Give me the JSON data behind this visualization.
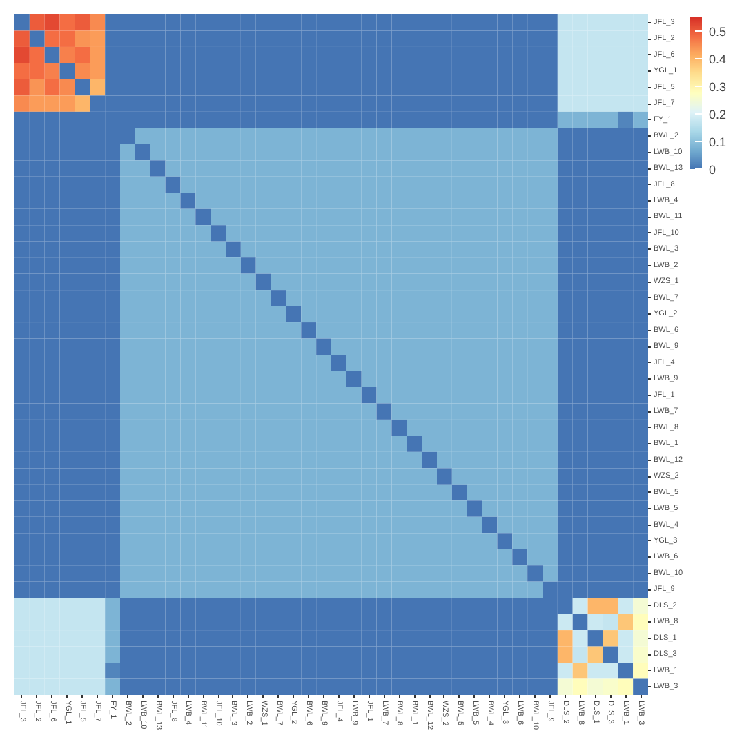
{
  "chart_data": {
    "type": "heatmap",
    "categories": [
      "JFL_3",
      "JFL_2",
      "JFL_6",
      "YGL_1",
      "JFL_5",
      "JFL_7",
      "FY_1",
      "BWL_2",
      "LWB_10",
      "BWL_13",
      "JFL_8",
      "LWB_4",
      "BWL_11",
      "JFL_10",
      "BWL_3",
      "LWB_2",
      "WZS_1",
      "BWL_7",
      "YGL_2",
      "BWL_6",
      "BWL_9",
      "JFL_4",
      "LWB_9",
      "JFL_1",
      "LWB_7",
      "BWL_8",
      "BWL_1",
      "BWL_12",
      "WZS_2",
      "BWL_5",
      "LWB_5",
      "BWL_4",
      "YGL_3",
      "LWB_6",
      "BWL_10",
      "JFL_9",
      "DLS_2",
      "LWB_8",
      "DLS_1",
      "DLS_3",
      "LWB_1",
      "LWB_3"
    ],
    "y_categories": [
      "JFL_3",
      "JFL_2",
      "JFL_6",
      "YGL_1",
      "JFL_5",
      "JFL_7",
      "FY_1",
      "BWL_2",
      "LWB_10",
      "BWL_13",
      "JFL_8",
      "LWB_4",
      "BWL_11",
      "JFL_10",
      "BWL_3",
      "LWB_2",
      "WZS_1",
      "BWL_7",
      "YGL_2",
      "BWL_6",
      "BWL_9",
      "JFL_4",
      "LWB_9",
      "JFL_1",
      "LWB_7",
      "BWL_8",
      "BWL_1",
      "BWL_12",
      "WZS_2",
      "BWL_5",
      "LWB_5",
      "BWL_4",
      "YGL_3",
      "LWB_6",
      "BWL_10",
      "JFL_9",
      "DLS_2",
      "LWB_8",
      "DLS_1",
      "DLS_3",
      "LWB_1",
      "LWB_3"
    ],
    "cells": [
      [
        0,
        0.5,
        0.52,
        0.48,
        0.5,
        0.45,
        0,
        0,
        0,
        0,
        0,
        0,
        0,
        0,
        0,
        0,
        0,
        0,
        0,
        0,
        0,
        0,
        0,
        0,
        0,
        0,
        0,
        0,
        0,
        0,
        0,
        0,
        0,
        0,
        0,
        0,
        0.17,
        0.17,
        0.17,
        0.17,
        0.17,
        0.17
      ],
      [
        0.5,
        0,
        0.48,
        0.48,
        0.44,
        0.43,
        0,
        0,
        0,
        0,
        0,
        0,
        0,
        0,
        0,
        0,
        0,
        0,
        0,
        0,
        0,
        0,
        0,
        0,
        0,
        0,
        0,
        0,
        0,
        0,
        0,
        0,
        0,
        0,
        0,
        0,
        0.17,
        0.17,
        0.17,
        0.17,
        0.17,
        0.17
      ],
      [
        0.52,
        0.48,
        0,
        0.46,
        0.48,
        0.43,
        0,
        0,
        0,
        0,
        0,
        0,
        0,
        0,
        0,
        0,
        0,
        0,
        0,
        0,
        0,
        0,
        0,
        0,
        0,
        0,
        0,
        0,
        0,
        0,
        0,
        0,
        0,
        0,
        0,
        0,
        0.17,
        0.17,
        0.17,
        0.17,
        0.17,
        0.17
      ],
      [
        0.48,
        0.48,
        0.46,
        0,
        0.45,
        0.43,
        0,
        0,
        0,
        0,
        0,
        0,
        0,
        0,
        0,
        0,
        0,
        0,
        0,
        0,
        0,
        0,
        0,
        0,
        0,
        0,
        0,
        0,
        0,
        0,
        0,
        0,
        0,
        0,
        0,
        0,
        0.17,
        0.17,
        0.17,
        0.17,
        0.17,
        0.17
      ],
      [
        0.5,
        0.44,
        0.48,
        0.45,
        0,
        0.4,
        0,
        0,
        0,
        0,
        0,
        0,
        0,
        0,
        0,
        0,
        0,
        0,
        0,
        0,
        0,
        0,
        0,
        0,
        0,
        0,
        0,
        0,
        0,
        0,
        0,
        0,
        0,
        0,
        0,
        0,
        0.17,
        0.17,
        0.17,
        0.17,
        0.17,
        0.17
      ],
      [
        0.45,
        0.43,
        0.43,
        0.43,
        0.4,
        0,
        0,
        0,
        0,
        0,
        0,
        0,
        0,
        0,
        0,
        0,
        0,
        0,
        0,
        0,
        0,
        0,
        0,
        0,
        0,
        0,
        0,
        0,
        0,
        0,
        0,
        0,
        0,
        0,
        0,
        0,
        0.17,
        0.17,
        0.17,
        0.17,
        0.17,
        0.17
      ],
      [
        0,
        0,
        0,
        0,
        0,
        0,
        0,
        0,
        0,
        0,
        0,
        0,
        0,
        0,
        0,
        0,
        0,
        0,
        0,
        0,
        0,
        0,
        0,
        0,
        0,
        0,
        0,
        0,
        0,
        0,
        0,
        0,
        0,
        0,
        0,
        0,
        0.08,
        0.08,
        0.08,
        0.08,
        0.02,
        0.08
      ],
      [
        0,
        0,
        0,
        0,
        0,
        0,
        0,
        0,
        0.08,
        0.08,
        0.08,
        0.08,
        0.08,
        0.08,
        0.08,
        0.08,
        0.08,
        0.08,
        0.08,
        0.08,
        0.08,
        0.08,
        0.08,
        0.08,
        0.08,
        0.08,
        0.08,
        0.08,
        0.08,
        0.08,
        0.08,
        0.08,
        0.08,
        0.08,
        0.08,
        0.08,
        0,
        0,
        0,
        0,
        0,
        0
      ],
      [
        0,
        0,
        0,
        0,
        0,
        0,
        0,
        0.08,
        0,
        0.08,
        0.08,
        0.08,
        0.08,
        0.08,
        0.08,
        0.08,
        0.08,
        0.08,
        0.08,
        0.08,
        0.08,
        0.08,
        0.08,
        0.08,
        0.08,
        0.08,
        0.08,
        0.08,
        0.08,
        0.08,
        0.08,
        0.08,
        0.08,
        0.08,
        0.08,
        0.08,
        0,
        0,
        0,
        0,
        0,
        0
      ],
      [
        0,
        0,
        0,
        0,
        0,
        0,
        0,
        0.08,
        0.08,
        0,
        0.08,
        0.08,
        0.08,
        0.08,
        0.08,
        0.08,
        0.08,
        0.08,
        0.08,
        0.08,
        0.08,
        0.08,
        0.08,
        0.08,
        0.08,
        0.08,
        0.08,
        0.08,
        0.08,
        0.08,
        0.08,
        0.08,
        0.08,
        0.08,
        0.08,
        0.08,
        0,
        0,
        0,
        0,
        0,
        0
      ],
      [
        0,
        0,
        0,
        0,
        0,
        0,
        0,
        0.08,
        0.08,
        0.08,
        0,
        0.08,
        0.08,
        0.08,
        0.08,
        0.08,
        0.08,
        0.08,
        0.08,
        0.08,
        0.08,
        0.08,
        0.08,
        0.08,
        0.08,
        0.08,
        0.08,
        0.08,
        0.08,
        0.08,
        0.08,
        0.08,
        0.08,
        0.08,
        0.08,
        0.08,
        0,
        0,
        0,
        0,
        0,
        0
      ],
      [
        0,
        0,
        0,
        0,
        0,
        0,
        0,
        0.08,
        0.08,
        0.08,
        0.08,
        0,
        0.08,
        0.08,
        0.08,
        0.08,
        0.08,
        0.08,
        0.08,
        0.08,
        0.08,
        0.08,
        0.08,
        0.08,
        0.08,
        0.08,
        0.08,
        0.08,
        0.08,
        0.08,
        0.08,
        0.08,
        0.08,
        0.08,
        0.08,
        0.08,
        0,
        0,
        0,
        0,
        0,
        0
      ],
      [
        0,
        0,
        0,
        0,
        0,
        0,
        0,
        0.08,
        0.08,
        0.08,
        0.08,
        0.08,
        0,
        0.08,
        0.08,
        0.08,
        0.08,
        0.08,
        0.08,
        0.08,
        0.08,
        0.08,
        0.08,
        0.08,
        0.08,
        0.08,
        0.08,
        0.08,
        0.08,
        0.08,
        0.08,
        0.08,
        0.08,
        0.08,
        0.08,
        0.08,
        0,
        0,
        0,
        0,
        0,
        0
      ],
      [
        0,
        0,
        0,
        0,
        0,
        0,
        0,
        0.08,
        0.08,
        0.08,
        0.08,
        0.08,
        0.08,
        0,
        0.08,
        0.08,
        0.08,
        0.08,
        0.08,
        0.08,
        0.08,
        0.08,
        0.08,
        0.08,
        0.08,
        0.08,
        0.08,
        0.08,
        0.08,
        0.08,
        0.08,
        0.08,
        0.08,
        0.08,
        0.08,
        0.08,
        0,
        0,
        0,
        0,
        0,
        0
      ],
      [
        0,
        0,
        0,
        0,
        0,
        0,
        0,
        0.08,
        0.08,
        0.08,
        0.08,
        0.08,
        0.08,
        0.08,
        0,
        0.08,
        0.08,
        0.08,
        0.08,
        0.08,
        0.08,
        0.08,
        0.08,
        0.08,
        0.08,
        0.08,
        0.08,
        0.08,
        0.08,
        0.08,
        0.08,
        0.08,
        0.08,
        0.08,
        0.08,
        0.08,
        0,
        0,
        0,
        0,
        0,
        0
      ],
      [
        0,
        0,
        0,
        0,
        0,
        0,
        0,
        0.08,
        0.08,
        0.08,
        0.08,
        0.08,
        0.08,
        0.08,
        0.08,
        0,
        0.08,
        0.08,
        0.08,
        0.08,
        0.08,
        0.08,
        0.08,
        0.08,
        0.08,
        0.08,
        0.08,
        0.08,
        0.08,
        0.08,
        0.08,
        0.08,
        0.08,
        0.08,
        0.08,
        0.08,
        0,
        0,
        0,
        0,
        0,
        0
      ],
      [
        0,
        0,
        0,
        0,
        0,
        0,
        0,
        0.08,
        0.08,
        0.08,
        0.08,
        0.08,
        0.08,
        0.08,
        0.08,
        0.08,
        0,
        0.08,
        0.08,
        0.08,
        0.08,
        0.08,
        0.08,
        0.08,
        0.08,
        0.08,
        0.08,
        0.08,
        0.08,
        0.08,
        0.08,
        0.08,
        0.08,
        0.08,
        0.08,
        0.08,
        0,
        0,
        0,
        0,
        0,
        0
      ],
      [
        0,
        0,
        0,
        0,
        0,
        0,
        0,
        0.08,
        0.08,
        0.08,
        0.08,
        0.08,
        0.08,
        0.08,
        0.08,
        0.08,
        0.08,
        0,
        0.08,
        0.08,
        0.08,
        0.08,
        0.08,
        0.08,
        0.08,
        0.08,
        0.08,
        0.08,
        0.08,
        0.08,
        0.08,
        0.08,
        0.08,
        0.08,
        0.08,
        0.08,
        0,
        0,
        0,
        0,
        0,
        0
      ],
      [
        0,
        0,
        0,
        0,
        0,
        0,
        0,
        0.08,
        0.08,
        0.08,
        0.08,
        0.08,
        0.08,
        0.08,
        0.08,
        0.08,
        0.08,
        0.08,
        0,
        0.08,
        0.08,
        0.08,
        0.08,
        0.08,
        0.08,
        0.08,
        0.08,
        0.08,
        0.08,
        0.08,
        0.08,
        0.08,
        0.08,
        0.08,
        0.08,
        0.08,
        0,
        0,
        0,
        0,
        0,
        0
      ],
      [
        0,
        0,
        0,
        0,
        0,
        0,
        0,
        0.08,
        0.08,
        0.08,
        0.08,
        0.08,
        0.08,
        0.08,
        0.08,
        0.08,
        0.08,
        0.08,
        0.08,
        0,
        0.08,
        0.08,
        0.08,
        0.08,
        0.08,
        0.08,
        0.08,
        0.08,
        0.08,
        0.08,
        0.08,
        0.08,
        0.08,
        0.08,
        0.08,
        0.08,
        0,
        0,
        0,
        0,
        0,
        0
      ],
      [
        0,
        0,
        0,
        0,
        0,
        0,
        0,
        0.08,
        0.08,
        0.08,
        0.08,
        0.08,
        0.08,
        0.08,
        0.08,
        0.08,
        0.08,
        0.08,
        0.08,
        0.08,
        0,
        0.08,
        0.08,
        0.08,
        0.08,
        0.08,
        0.08,
        0.08,
        0.08,
        0.08,
        0.08,
        0.08,
        0.08,
        0.08,
        0.08,
        0.08,
        0,
        0,
        0,
        0,
        0,
        0
      ],
      [
        0,
        0,
        0,
        0,
        0,
        0,
        0,
        0.08,
        0.08,
        0.08,
        0.08,
        0.08,
        0.08,
        0.08,
        0.08,
        0.08,
        0.08,
        0.08,
        0.08,
        0.08,
        0.08,
        0,
        0.08,
        0.08,
        0.08,
        0.08,
        0.08,
        0.08,
        0.08,
        0.08,
        0.08,
        0.08,
        0.08,
        0.08,
        0.08,
        0.08,
        0,
        0,
        0,
        0,
        0,
        0
      ],
      [
        0,
        0,
        0,
        0,
        0,
        0,
        0,
        0.08,
        0.08,
        0.08,
        0.08,
        0.08,
        0.08,
        0.08,
        0.08,
        0.08,
        0.08,
        0.08,
        0.08,
        0.08,
        0.08,
        0.08,
        0,
        0.08,
        0.08,
        0.08,
        0.08,
        0.08,
        0.08,
        0.08,
        0.08,
        0.08,
        0.08,
        0.08,
        0.08,
        0.08,
        0,
        0,
        0,
        0,
        0,
        0
      ],
      [
        0,
        0,
        0,
        0,
        0,
        0,
        0,
        0.08,
        0.08,
        0.08,
        0.08,
        0.08,
        0.08,
        0.08,
        0.08,
        0.08,
        0.08,
        0.08,
        0.08,
        0.08,
        0.08,
        0.08,
        0.08,
        0,
        0.08,
        0.08,
        0.08,
        0.08,
        0.08,
        0.08,
        0.08,
        0.08,
        0.08,
        0.08,
        0.08,
        0.08,
        0,
        0,
        0,
        0,
        0,
        0
      ],
      [
        0,
        0,
        0,
        0,
        0,
        0,
        0,
        0.08,
        0.08,
        0.08,
        0.08,
        0.08,
        0.08,
        0.08,
        0.08,
        0.08,
        0.08,
        0.08,
        0.08,
        0.08,
        0.08,
        0.08,
        0.08,
        0.08,
        0,
        0.08,
        0.08,
        0.08,
        0.08,
        0.08,
        0.08,
        0.08,
        0.08,
        0.08,
        0.08,
        0.08,
        0,
        0,
        0,
        0,
        0,
        0
      ],
      [
        0,
        0,
        0,
        0,
        0,
        0,
        0,
        0.08,
        0.08,
        0.08,
        0.08,
        0.08,
        0.08,
        0.08,
        0.08,
        0.08,
        0.08,
        0.08,
        0.08,
        0.08,
        0.08,
        0.08,
        0.08,
        0.08,
        0.08,
        0,
        0.08,
        0.08,
        0.08,
        0.08,
        0.08,
        0.08,
        0.08,
        0.08,
        0.08,
        0.08,
        0,
        0,
        0,
        0,
        0,
        0
      ],
      [
        0,
        0,
        0,
        0,
        0,
        0,
        0,
        0.08,
        0.08,
        0.08,
        0.08,
        0.08,
        0.08,
        0.08,
        0.08,
        0.08,
        0.08,
        0.08,
        0.08,
        0.08,
        0.08,
        0.08,
        0.08,
        0.08,
        0.08,
        0.08,
        0,
        0.08,
        0.08,
        0.08,
        0.08,
        0.08,
        0.08,
        0.08,
        0.08,
        0.08,
        0,
        0,
        0,
        0,
        0,
        0
      ],
      [
        0,
        0,
        0,
        0,
        0,
        0,
        0,
        0.08,
        0.08,
        0.08,
        0.08,
        0.08,
        0.08,
        0.08,
        0.08,
        0.08,
        0.08,
        0.08,
        0.08,
        0.08,
        0.08,
        0.08,
        0.08,
        0.08,
        0.08,
        0.08,
        0.08,
        0,
        0.08,
        0.08,
        0.08,
        0.08,
        0.08,
        0.08,
        0.08,
        0.08,
        0,
        0,
        0,
        0,
        0,
        0
      ],
      [
        0,
        0,
        0,
        0,
        0,
        0,
        0,
        0.08,
        0.08,
        0.08,
        0.08,
        0.08,
        0.08,
        0.08,
        0.08,
        0.08,
        0.08,
        0.08,
        0.08,
        0.08,
        0.08,
        0.08,
        0.08,
        0.08,
        0.08,
        0.08,
        0.08,
        0.08,
        0,
        0.08,
        0.08,
        0.08,
        0.08,
        0.08,
        0.08,
        0.08,
        0,
        0,
        0,
        0,
        0,
        0
      ],
      [
        0,
        0,
        0,
        0,
        0,
        0,
        0,
        0.08,
        0.08,
        0.08,
        0.08,
        0.08,
        0.08,
        0.08,
        0.08,
        0.08,
        0.08,
        0.08,
        0.08,
        0.08,
        0.08,
        0.08,
        0.08,
        0.08,
        0.08,
        0.08,
        0.08,
        0.08,
        0.08,
        0,
        0.08,
        0.08,
        0.08,
        0.08,
        0.08,
        0.08,
        0,
        0,
        0,
        0,
        0,
        0
      ],
      [
        0,
        0,
        0,
        0,
        0,
        0,
        0,
        0.08,
        0.08,
        0.08,
        0.08,
        0.08,
        0.08,
        0.08,
        0.08,
        0.08,
        0.08,
        0.08,
        0.08,
        0.08,
        0.08,
        0.08,
        0.08,
        0.08,
        0.08,
        0.08,
        0.08,
        0.08,
        0.08,
        0.08,
        0,
        0.08,
        0.08,
        0.08,
        0.08,
        0.08,
        0,
        0,
        0,
        0,
        0,
        0
      ],
      [
        0,
        0,
        0,
        0,
        0,
        0,
        0,
        0.08,
        0.08,
        0.08,
        0.08,
        0.08,
        0.08,
        0.08,
        0.08,
        0.08,
        0.08,
        0.08,
        0.08,
        0.08,
        0.08,
        0.08,
        0.08,
        0.08,
        0.08,
        0.08,
        0.08,
        0.08,
        0.08,
        0.08,
        0.08,
        0,
        0.08,
        0.08,
        0.08,
        0.08,
        0,
        0,
        0,
        0,
        0,
        0
      ],
      [
        0,
        0,
        0,
        0,
        0,
        0,
        0,
        0.08,
        0.08,
        0.08,
        0.08,
        0.08,
        0.08,
        0.08,
        0.08,
        0.08,
        0.08,
        0.08,
        0.08,
        0.08,
        0.08,
        0.08,
        0.08,
        0.08,
        0.08,
        0.08,
        0.08,
        0.08,
        0.08,
        0.08,
        0.08,
        0.08,
        0,
        0.08,
        0.08,
        0.08,
        0,
        0,
        0,
        0,
        0,
        0
      ],
      [
        0,
        0,
        0,
        0,
        0,
        0,
        0,
        0.08,
        0.08,
        0.08,
        0.08,
        0.08,
        0.08,
        0.08,
        0.08,
        0.08,
        0.08,
        0.08,
        0.08,
        0.08,
        0.08,
        0.08,
        0.08,
        0.08,
        0.08,
        0.08,
        0.08,
        0.08,
        0.08,
        0.08,
        0.08,
        0.08,
        0.08,
        0,
        0.08,
        0.08,
        0,
        0,
        0,
        0,
        0,
        0
      ],
      [
        0,
        0,
        0,
        0,
        0,
        0,
        0,
        0.08,
        0.08,
        0.08,
        0.08,
        0.08,
        0.08,
        0.08,
        0.08,
        0.08,
        0.08,
        0.08,
        0.08,
        0.08,
        0.08,
        0.08,
        0.08,
        0.08,
        0.08,
        0.08,
        0.08,
        0.08,
        0.08,
        0.08,
        0.08,
        0.08,
        0.08,
        0.08,
        0,
        0.08,
        0,
        0,
        0,
        0,
        0,
        0
      ],
      [
        0,
        0,
        0,
        0,
        0,
        0,
        0,
        0.08,
        0.08,
        0.08,
        0.08,
        0.08,
        0.08,
        0.08,
        0.08,
        0.08,
        0.08,
        0.08,
        0.08,
        0.08,
        0.08,
        0.08,
        0.08,
        0.08,
        0.08,
        0.08,
        0.08,
        0.08,
        0.08,
        0.08,
        0.08,
        0.08,
        0.08,
        0.08,
        0.08,
        0,
        0,
        0,
        0,
        0,
        0,
        0
      ],
      [
        0.17,
        0.17,
        0.17,
        0.17,
        0.17,
        0.17,
        0.08,
        0,
        0,
        0,
        0,
        0,
        0,
        0,
        0,
        0,
        0,
        0,
        0,
        0,
        0,
        0,
        0,
        0,
        0,
        0,
        0,
        0,
        0,
        0,
        0,
        0,
        0,
        0,
        0,
        0,
        0,
        0.18,
        0.4,
        0.4,
        0.18,
        0.25
      ],
      [
        0.17,
        0.17,
        0.17,
        0.17,
        0.17,
        0.17,
        0.08,
        0,
        0,
        0,
        0,
        0,
        0,
        0,
        0,
        0,
        0,
        0,
        0,
        0,
        0,
        0,
        0,
        0,
        0,
        0,
        0,
        0,
        0,
        0,
        0,
        0,
        0,
        0,
        0,
        0,
        0.18,
        0,
        0.18,
        0.17,
        0.38,
        0.28
      ],
      [
        0.17,
        0.17,
        0.17,
        0.17,
        0.17,
        0.17,
        0.08,
        0,
        0,
        0,
        0,
        0,
        0,
        0,
        0,
        0,
        0,
        0,
        0,
        0,
        0,
        0,
        0,
        0,
        0,
        0,
        0,
        0,
        0,
        0,
        0,
        0,
        0,
        0,
        0,
        0,
        0.4,
        0.18,
        0,
        0.38,
        0.18,
        0.25
      ],
      [
        0.17,
        0.17,
        0.17,
        0.17,
        0.17,
        0.17,
        0.08,
        0,
        0,
        0,
        0,
        0,
        0,
        0,
        0,
        0,
        0,
        0,
        0,
        0,
        0,
        0,
        0,
        0,
        0,
        0,
        0,
        0,
        0,
        0,
        0,
        0,
        0,
        0,
        0,
        0,
        0.4,
        0.17,
        0.38,
        0,
        0.18,
        0.26
      ],
      [
        0.17,
        0.17,
        0.17,
        0.17,
        0.17,
        0.17,
        0.02,
        0,
        0,
        0,
        0,
        0,
        0,
        0,
        0,
        0,
        0,
        0,
        0,
        0,
        0,
        0,
        0,
        0,
        0,
        0,
        0,
        0,
        0,
        0,
        0,
        0,
        0,
        0,
        0,
        0,
        0.18,
        0.38,
        0.18,
        0.18,
        0,
        0.28
      ],
      [
        0.17,
        0.17,
        0.17,
        0.17,
        0.17,
        0.17,
        0.08,
        0,
        0,
        0,
        0,
        0,
        0,
        0,
        0,
        0,
        0,
        0,
        0,
        0,
        0,
        0,
        0,
        0,
        0,
        0,
        0,
        0,
        0,
        0,
        0,
        0,
        0,
        0,
        0,
        0,
        0.25,
        0.28,
        0.25,
        0.26,
        0.28,
        0
      ]
    ],
    "clim": [
      0,
      0.55
    ],
    "cticks": [
      0,
      0.1,
      0.2,
      0.3,
      0.4,
      0.5
    ]
  }
}
